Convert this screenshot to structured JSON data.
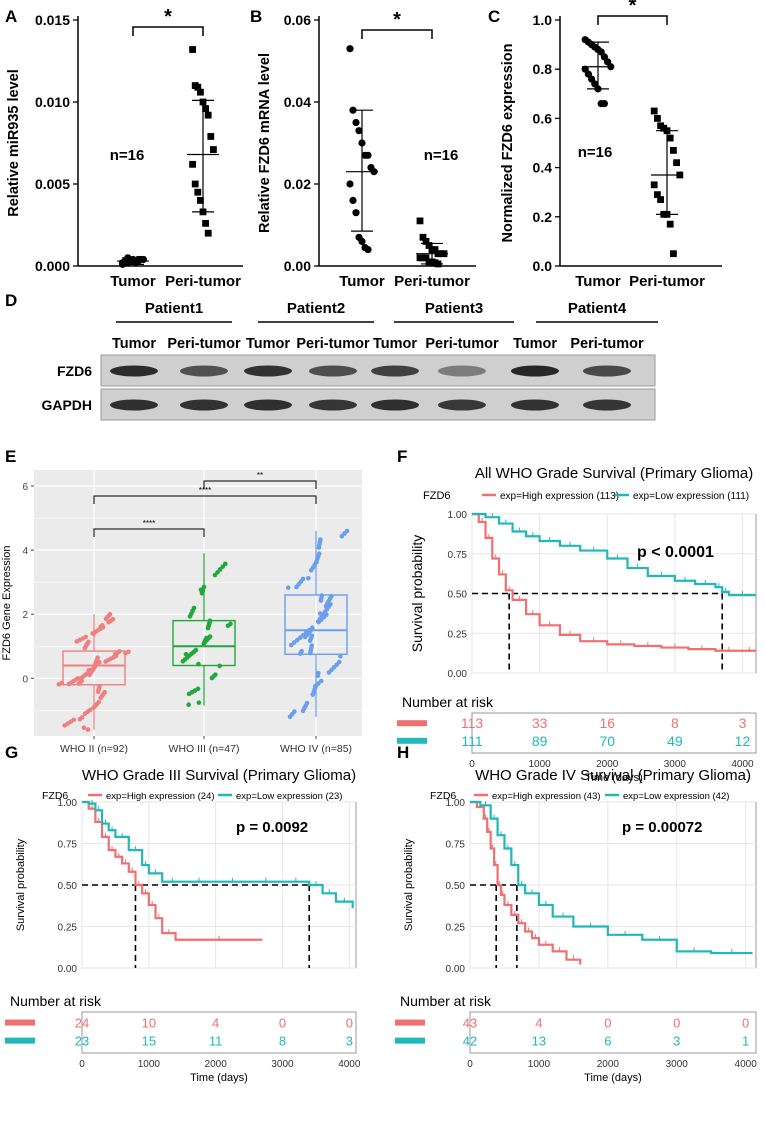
{
  "figure": {
    "significance": "*",
    "panels": {
      "A": "A",
      "B": "B",
      "C": "C",
      "D": "D",
      "E": "E",
      "F": "F",
      "G": "G",
      "H": "H"
    }
  },
  "chart_data": [
    {
      "panel": "A",
      "type": "scatter",
      "ylabel": "Relative miR935 level",
      "ylim": [
        0,
        0.015
      ],
      "yticks": [
        "0.000",
        "0.005",
        "0.010",
        "0.015"
      ],
      "categories": [
        "Tumor",
        "Peri-tumor"
      ],
      "n_label": "n=16",
      "significance": "*",
      "groups": [
        {
          "name": "Tumor",
          "mean": 0.0003,
          "sd_low": 0.0001,
          "sd_high": 0.0005,
          "points": [
            0.0001,
            0.0002,
            0.0002,
            0.0003,
            0.0003,
            0.0003,
            0.0004,
            0.0004,
            0.0004,
            0.0002,
            0.0003,
            0.0005,
            0.0003,
            0.0004,
            0.0002,
            0.0003
          ]
        },
        {
          "name": "Peri-tumor",
          "mean": 0.0068,
          "sd_low": 0.0033,
          "sd_high": 0.0101,
          "points": [
            0.0132,
            0.011,
            0.0109,
            0.0106,
            0.01,
            0.0096,
            0.0092,
            0.0079,
            0.0071,
            0.0062,
            0.005,
            0.0045,
            0.004,
            0.0033,
            0.0026,
            0.002
          ]
        }
      ]
    },
    {
      "panel": "B",
      "type": "scatter",
      "ylabel": "Relative FZD6 mRNA level",
      "ylim": [
        0,
        0.06
      ],
      "yticks": [
        "0.00",
        "0.02",
        "0.04",
        "0.06"
      ],
      "categories": [
        "Tumor",
        "Peri-tumor"
      ],
      "n_label": "n=16",
      "significance": "*",
      "groups": [
        {
          "name": "Tumor",
          "mean": 0.023,
          "sd_low": 0.0085,
          "sd_high": 0.038,
          "points": [
            0.053,
            0.038,
            0.035,
            0.033,
            0.03,
            0.027,
            0.027,
            0.024,
            0.023,
            0.02,
            0.016,
            0.013,
            0.007,
            0.006,
            0.0045,
            0.004
          ]
        },
        {
          "name": "Peri-tumor",
          "mean": 0.003,
          "sd_low": 0.0005,
          "sd_high": 0.0055,
          "points": [
            0.011,
            0.007,
            0.006,
            0.005,
            0.004,
            0.004,
            0.003,
            0.003,
            0.003,
            0.002,
            0.002,
            0.002,
            0.001,
            0.001,
            0.0008,
            0.0005
          ]
        }
      ]
    },
    {
      "panel": "C",
      "type": "scatter",
      "ylabel": "Normalized FZD6 expression",
      "ylim": [
        0,
        1.0
      ],
      "yticks": [
        "0.0",
        "0.2",
        "0.4",
        "0.6",
        "0.8",
        "1.0"
      ],
      "categories": [
        "Tumor",
        "Peri-tumor"
      ],
      "n_label": "n=16",
      "significance": "*",
      "groups": [
        {
          "name": "Tumor",
          "mean": 0.81,
          "sd_low": 0.72,
          "sd_high": 0.91,
          "points": [
            0.92,
            0.91,
            0.9,
            0.89,
            0.88,
            0.87,
            0.85,
            0.83,
            0.81,
            0.8,
            0.78,
            0.76,
            0.74,
            0.72,
            0.66,
            0.66
          ]
        },
        {
          "name": "Peri-tumor",
          "mean": 0.37,
          "sd_low": 0.21,
          "sd_high": 0.55,
          "points": [
            0.63,
            0.6,
            0.57,
            0.56,
            0.55,
            0.52,
            0.47,
            0.42,
            0.37,
            0.33,
            0.29,
            0.27,
            0.21,
            0.21,
            0.17,
            0.05
          ]
        }
      ]
    },
    {
      "panel": "D",
      "type": "blot",
      "patients": [
        "Patient1",
        "Patient2",
        "Patient3",
        "Patient4"
      ],
      "lane_labels": [
        "Tumor",
        "Peri-tumor"
      ],
      "rows": [
        {
          "name": "FZD6",
          "intensities": [
            0.92,
            0.7,
            0.88,
            0.72,
            0.8,
            0.45,
            0.95,
            0.75
          ]
        },
        {
          "name": "GAPDH",
          "intensities": [
            0.9,
            0.88,
            0.9,
            0.86,
            0.9,
            0.85,
            0.88,
            0.86
          ]
        }
      ]
    },
    {
      "panel": "E",
      "type": "boxplot",
      "ylabel": "FZD6 Gene Expression",
      "yticks": [
        "0",
        "2",
        "4",
        "6"
      ],
      "ylim": [
        -1.8,
        6.5
      ],
      "categories": [
        "WHO II (n=92)",
        "WHO III (n=47)",
        "WHO IV (n=85)"
      ],
      "colors": [
        "#f08080",
        "#22a83a",
        "#6a9ff0"
      ],
      "boxes": [
        {
          "q1": -0.2,
          "median": 0.4,
          "q3": 0.85,
          "low": -1.6,
          "high": 2.0,
          "n": 92
        },
        {
          "q1": 0.4,
          "median": 1.0,
          "q3": 1.8,
          "low": -0.85,
          "high": 3.9,
          "n": 47
        },
        {
          "q1": 0.75,
          "median": 1.5,
          "q3": 2.6,
          "low": -1.2,
          "high": 4.6,
          "n": 85
        }
      ],
      "brackets": [
        {
          "from": 0,
          "to": 1,
          "label": "****"
        },
        {
          "from": 0,
          "to": 2,
          "label": "****"
        },
        {
          "from": 1,
          "to": 2,
          "label": "**"
        }
      ]
    },
    {
      "panel": "F",
      "type": "line",
      "title": "All WHO Grade Survival (Primary Glioma)",
      "legend_title": "FZD6",
      "series": [
        {
          "name": "exp=High expression (113)",
          "color": "#f07070",
          "x": [
            0,
            100,
            200,
            300,
            400,
            500,
            600,
            800,
            1000,
            1300,
            1600,
            2000,
            2400,
            2800,
            3200,
            3600,
            4000,
            4200
          ],
          "y": [
            1.0,
            0.95,
            0.85,
            0.72,
            0.62,
            0.52,
            0.46,
            0.37,
            0.3,
            0.24,
            0.2,
            0.18,
            0.17,
            0.16,
            0.15,
            0.14,
            0.14,
            0.14
          ],
          "median_x": 550
        },
        {
          "name": "exp=Low expression (111)",
          "color": "#20b8b8",
          "x": [
            0,
            200,
            400,
            600,
            800,
            1000,
            1300,
            1600,
            2000,
            2300,
            2600,
            3000,
            3300,
            3600,
            3700,
            3800,
            4200
          ],
          "y": [
            1.0,
            0.98,
            0.94,
            0.89,
            0.86,
            0.83,
            0.8,
            0.77,
            0.72,
            0.66,
            0.61,
            0.58,
            0.56,
            0.54,
            0.51,
            0.49,
            0.49
          ],
          "median_x": 3700
        }
      ],
      "annotation": "p < 0.0001",
      "ylabel": "Survival probability",
      "yticks": [
        "0.00",
        "0.25",
        "0.50",
        "0.75",
        "1.00"
      ],
      "xticks": [
        "0",
        "1000",
        "2000",
        "3000",
        "4000"
      ],
      "xlim": [
        0,
        4200
      ],
      "xlabel": "Time (days)",
      "risk_title": "Number at risk",
      "risk": [
        [
          113,
          33,
          16,
          8,
          3
        ],
        [
          111,
          89,
          70,
          49,
          12
        ]
      ]
    },
    {
      "panel": "G",
      "type": "line",
      "title": "WHO Grade III Survival (Primary Glioma)",
      "legend_title": "FZD6",
      "series": [
        {
          "name": "exp=High expression (24)",
          "color": "#f07070",
          "x": [
            0,
            100,
            200,
            300,
            400,
            500,
            600,
            700,
            800,
            900,
            1000,
            1100,
            1200,
            1400,
            2700
          ],
          "y": [
            1.0,
            0.96,
            0.88,
            0.79,
            0.71,
            0.67,
            0.63,
            0.58,
            0.5,
            0.45,
            0.38,
            0.3,
            0.21,
            0.17,
            0.17
          ],
          "median_x": 800
        },
        {
          "name": "exp=Low expression (23)",
          "color": "#20b8b8",
          "x": [
            0,
            100,
            200,
            300,
            400,
            500,
            700,
            900,
            1000,
            1200,
            1500,
            2000,
            2500,
            3000,
            3400,
            3600,
            3800,
            4050
          ],
          "y": [
            1.0,
            0.99,
            0.95,
            0.87,
            0.83,
            0.79,
            0.71,
            0.62,
            0.57,
            0.52,
            0.52,
            0.52,
            0.52,
            0.52,
            0.5,
            0.45,
            0.4,
            0.36
          ],
          "median_x": 3400
        }
      ],
      "annotation": "p = 0.0092",
      "ylabel": "Survival probability",
      "yticks": [
        "0.00",
        "0.25",
        "0.50",
        "0.75",
        "1.00"
      ],
      "xticks": [
        "0",
        "1000",
        "2000",
        "3000",
        "4000"
      ],
      "xlim": [
        0,
        4100
      ],
      "xlabel": "Time (days)",
      "risk_title": "Number at risk",
      "risk": [
        [
          24,
          10,
          4,
          0,
          0
        ],
        [
          23,
          15,
          11,
          8,
          3
        ]
      ]
    },
    {
      "panel": "H",
      "type": "line",
      "title": "WHO Grade IV Survival (Primary Glioma)",
      "legend_title": "FZD6",
      "series": [
        {
          "name": "exp=High expression (43)",
          "color": "#f07070",
          "x": [
            0,
            100,
            200,
            250,
            300,
            350,
            400,
            450,
            500,
            600,
            700,
            800,
            900,
            1000,
            1200,
            1400,
            1600
          ],
          "y": [
            1.0,
            0.97,
            0.9,
            0.82,
            0.72,
            0.62,
            0.5,
            0.44,
            0.38,
            0.32,
            0.27,
            0.22,
            0.18,
            0.14,
            0.1,
            0.05,
            0.02
          ],
          "median_x": 380
        },
        {
          "name": "exp=Low expression (42)",
          "color": "#20b8b8",
          "x": [
            0,
            150,
            300,
            400,
            500,
            600,
            700,
            800,
            1000,
            1200,
            1500,
            2000,
            2500,
            3000,
            3500,
            4100
          ],
          "y": [
            1.0,
            0.98,
            0.9,
            0.8,
            0.72,
            0.62,
            0.5,
            0.45,
            0.38,
            0.31,
            0.25,
            0.2,
            0.17,
            0.1,
            0.09,
            0.09
          ],
          "median_x": 680
        }
      ],
      "annotation": "p = 0.00072",
      "ylabel": "Survival probability",
      "yticks": [
        "0.00",
        "0.25",
        "0.50",
        "0.75",
        "1.00"
      ],
      "xticks": [
        "0",
        "1000",
        "2000",
        "3000",
        "4000"
      ],
      "xlim": [
        0,
        4150
      ],
      "xlabel": "Time (days)",
      "risk_title": "Number at risk",
      "risk": [
        [
          43,
          4,
          0,
          0,
          0
        ],
        [
          42,
          13,
          6,
          3,
          1
        ]
      ]
    }
  ]
}
